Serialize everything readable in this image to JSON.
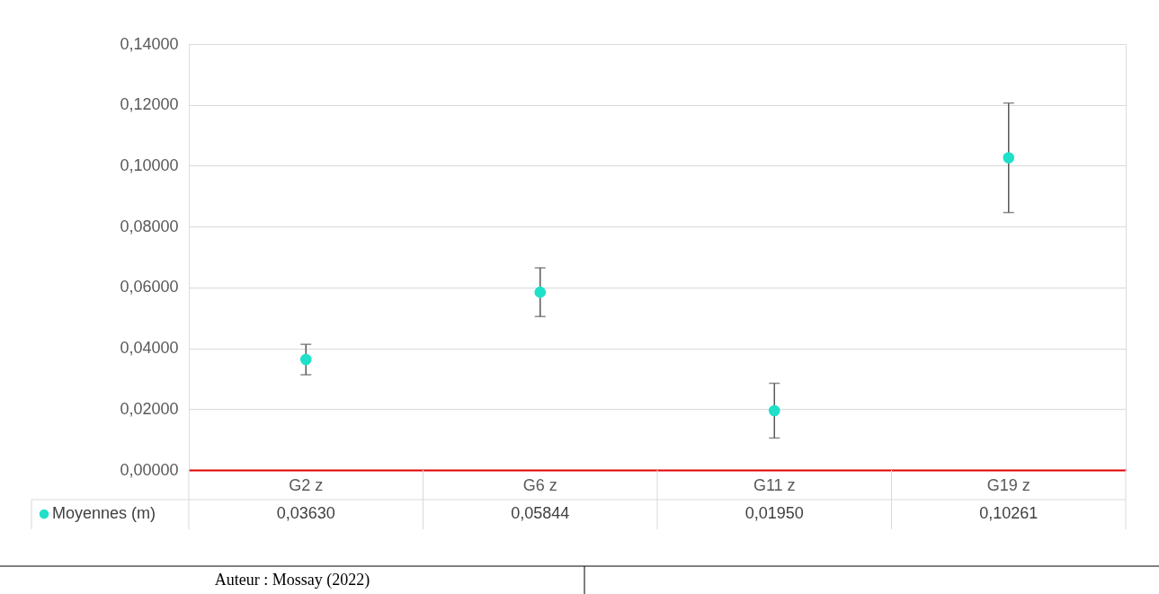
{
  "chart_data": {
    "type": "scatter",
    "categories": [
      "G2 z",
      "G6 z",
      "G11 z",
      "G19 z"
    ],
    "series": [
      {
        "name": "Moyennes (m)",
        "color": "#1fe0c9",
        "values": [
          0.0363,
          0.05844,
          0.0195,
          0.10261
        ],
        "errors": [
          0.005,
          0.008,
          0.009,
          0.018
        ],
        "value_labels": [
          "0,03630",
          "0,05844",
          "0,01950",
          "0,10261"
        ]
      }
    ],
    "ylim": [
      0,
      0.14
    ],
    "yticks": [
      {
        "value": 0,
        "label": "0,00000"
      },
      {
        "value": 0.02,
        "label": "0,02000"
      },
      {
        "value": 0.04,
        "label": "0,04000"
      },
      {
        "value": 0.06,
        "label": "0,06000"
      },
      {
        "value": 0.08,
        "label": "0,08000"
      },
      {
        "value": 0.1,
        "label": "0,10000"
      },
      {
        "value": 0.12,
        "label": "0,12000"
      },
      {
        "value": 0.14,
        "label": "0,14000"
      }
    ],
    "grid": "y",
    "marker": "circle",
    "legend": "bottom",
    "annotations": [
      "Auteur : Mossay (2022)"
    ]
  }
}
